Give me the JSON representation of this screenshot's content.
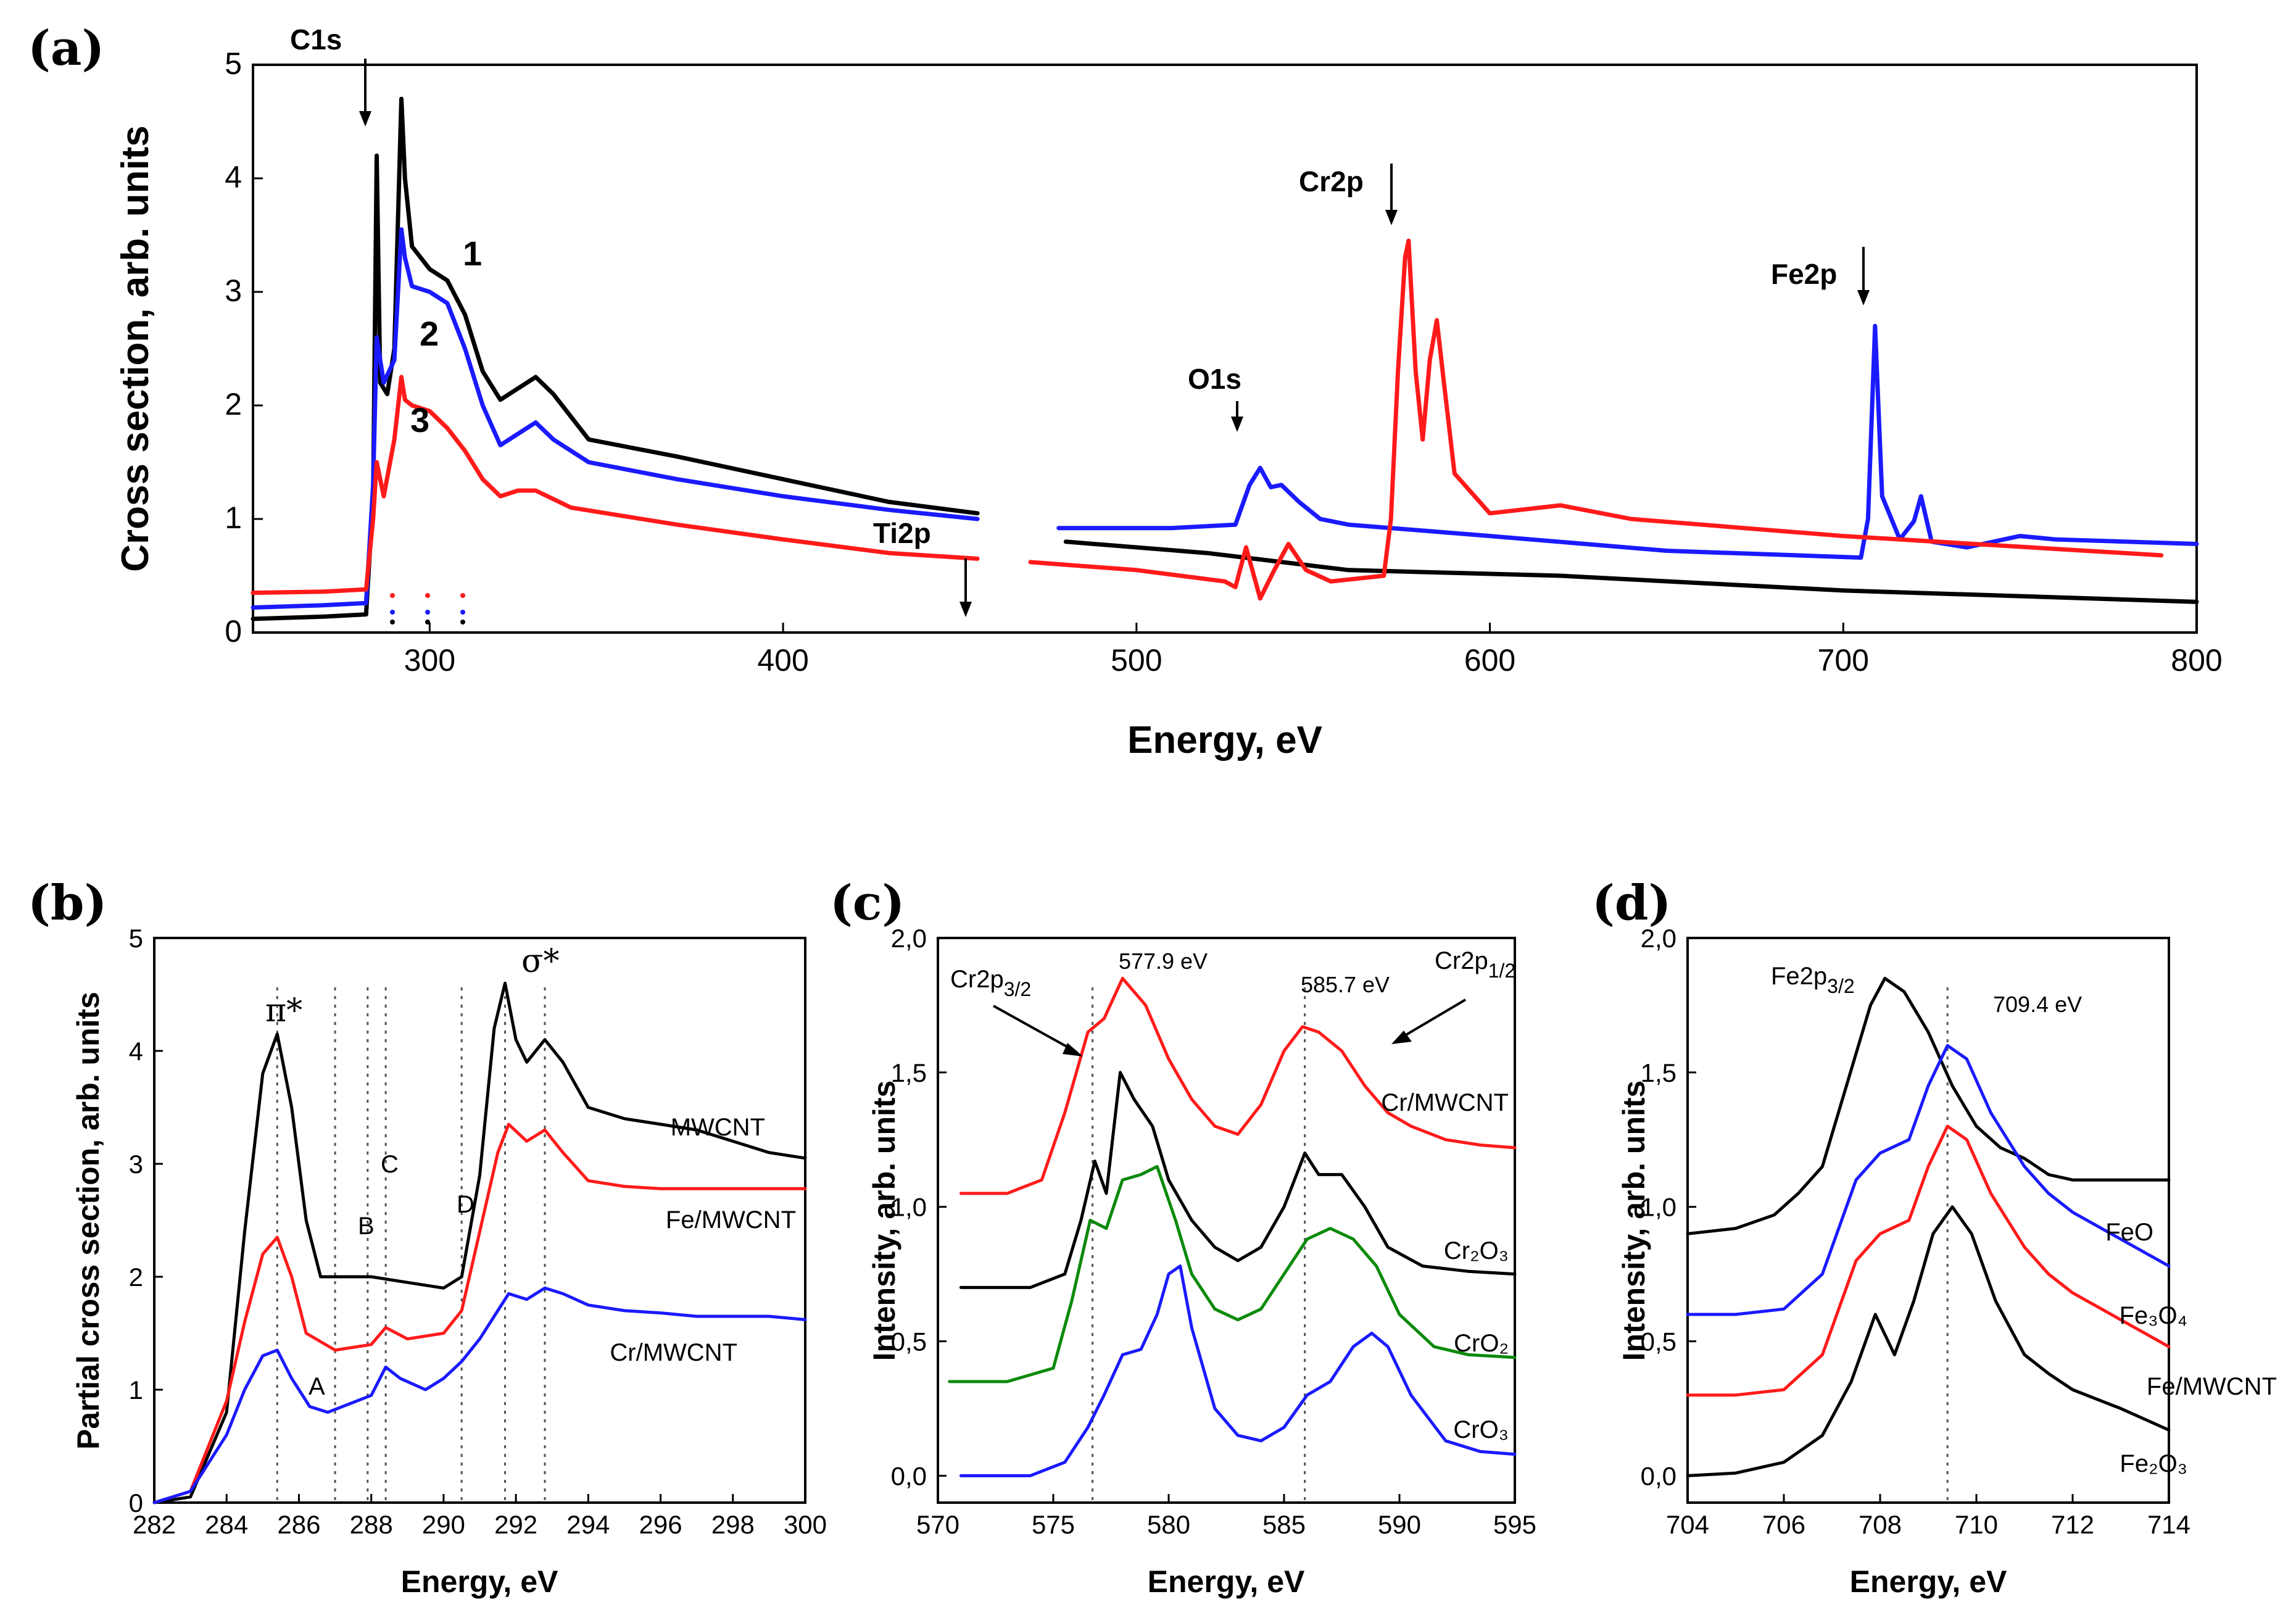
{
  "chart_data": [
    {
      "id": "a",
      "panel_label": "(a)",
      "type": "line",
      "xlabel": "Energy, eV",
      "ylabel": "Cross section, arb. units",
      "xlim": [
        250,
        800
      ],
      "ylim": [
        0,
        5
      ],
      "xticks": [
        "300",
        "400",
        "500",
        "600",
        "700",
        "800"
      ],
      "yticks": [
        "0",
        "1",
        "2",
        "3",
        "4",
        "5"
      ],
      "annotations": [
        "C1s",
        "Ti2p",
        "O1s",
        "Cr2p",
        "Fe2p"
      ],
      "curve_labels": [
        "1",
        "2",
        "3"
      ],
      "series": [
        {
          "name": "1",
          "color": "#000000",
          "segments": [
            {
              "x": [
                250,
                270,
                282,
                284,
                285,
                286,
                288,
                290,
                292,
                293,
                295,
                300,
                305,
                310,
                315,
                320,
                325,
                330,
                335,
                345,
                370,
                400,
                430,
                455
              ],
              "y": [
                0.12,
                0.14,
                0.16,
                1.2,
                4.2,
                2.2,
                2.1,
                2.5,
                4.7,
                4.0,
                3.4,
                3.2,
                3.1,
                2.8,
                2.3,
                2.05,
                2.15,
                2.25,
                2.1,
                1.7,
                1.55,
                1.35,
                1.15,
                1.05
              ]
            },
            {
              "x": [
                480,
                520,
                560,
                620,
                700,
                800
              ],
              "y": [
                0.8,
                0.7,
                0.55,
                0.5,
                0.37,
                0.27
              ]
            }
          ]
        },
        {
          "name": "2",
          "color": "#1a1aff",
          "segments": [
            {
              "x": [
                250,
                270,
                282,
                284,
                285,
                287,
                290,
                292,
                293,
                295,
                300,
                305,
                310,
                315,
                320,
                325,
                330,
                335,
                345,
                370,
                400,
                430,
                455
              ],
              "y": [
                0.22,
                0.24,
                0.26,
                1.3,
                2.6,
                2.2,
                2.4,
                3.55,
                3.3,
                3.05,
                3.0,
                2.9,
                2.5,
                2.0,
                1.65,
                1.75,
                1.85,
                1.7,
                1.5,
                1.35,
                1.2,
                1.08,
                1.0
              ]
            },
            {
              "x": [
                478,
                510,
                528,
                532,
                535,
                538,
                541,
                546,
                552,
                560,
                600,
                650,
                705,
                707,
                709,
                711,
                716,
                720,
                722,
                725,
                735,
                750,
                760,
                800
              ],
              "y": [
                0.92,
                0.92,
                0.95,
                1.3,
                1.45,
                1.28,
                1.3,
                1.15,
                1.0,
                0.95,
                0.85,
                0.72,
                0.66,
                1.0,
                2.7,
                1.2,
                0.82,
                0.98,
                1.2,
                0.8,
                0.75,
                0.85,
                0.82,
                0.78
              ]
            }
          ]
        },
        {
          "name": "3",
          "color": "#ff1a1a",
          "segments": [
            {
              "x": [
                250,
                270,
                282,
                284,
                285,
                287,
                290,
                292,
                293,
                295,
                300,
                305,
                310,
                315,
                320,
                325,
                330,
                340,
                370,
                400,
                430,
                455
              ],
              "y": [
                0.35,
                0.36,
                0.38,
                1.0,
                1.5,
                1.2,
                1.7,
                2.25,
                2.05,
                2.0,
                1.95,
                1.8,
                1.6,
                1.35,
                1.2,
                1.25,
                1.25,
                1.1,
                0.95,
                0.82,
                0.7,
                0.65
              ]
            },
            {
              "x": [
                470,
                500,
                525,
                528,
                531,
                535,
                539,
                543,
                548,
                555,
                570,
                572,
                574,
                576,
                577,
                579,
                581,
                583,
                585,
                587,
                590,
                600,
                620,
                640,
                700,
                790
              ],
              "y": [
                0.62,
                0.55,
                0.45,
                0.4,
                0.75,
                0.3,
                0.55,
                0.78,
                0.55,
                0.45,
                0.5,
                1.0,
                2.3,
                3.3,
                3.45,
                2.3,
                1.7,
                2.4,
                2.75,
                2.2,
                1.4,
                1.05,
                1.12,
                1.0,
                0.85,
                0.68
              ]
            }
          ]
        }
      ]
    },
    {
      "id": "b",
      "panel_label": "(b)",
      "type": "line",
      "xlabel": "Energy, eV",
      "ylabel": "Partial cross section, arb. units",
      "xlim": [
        282,
        300
      ],
      "ylim": [
        0,
        5
      ],
      "xticks": [
        "282",
        "284",
        "286",
        "288",
        "290",
        "292",
        "294",
        "296",
        "298",
        "300"
      ],
      "yticks": [
        "0",
        "1",
        "2",
        "3",
        "4",
        "5"
      ],
      "annotations": [
        "π*",
        "σ*",
        "A",
        "B",
        "C",
        "D"
      ],
      "guide_lines_x": [
        285.4,
        287.0,
        287.9,
        288.4,
        290.5,
        291.7,
        292.8
      ],
      "series": [
        {
          "name": "MWCNT",
          "color": "#000000",
          "x": [
            282,
            283,
            284,
            284.5,
            285,
            285.4,
            285.8,
            286.2,
            286.6,
            287,
            288,
            289,
            290,
            290.5,
            291,
            291.4,
            291.7,
            292.0,
            292.3,
            292.8,
            293.3,
            294,
            295,
            296,
            297,
            298,
            299,
            300
          ],
          "y": [
            0.0,
            0.05,
            0.8,
            2.4,
            3.8,
            4.15,
            3.5,
            2.5,
            2.0,
            2.0,
            2.0,
            1.95,
            1.9,
            2.0,
            2.9,
            4.2,
            4.6,
            4.1,
            3.9,
            4.1,
            3.9,
            3.5,
            3.4,
            3.35,
            3.3,
            3.2,
            3.1,
            3.05
          ]
        },
        {
          "name": "Fe/MWCNT",
          "color": "#ff1a1a",
          "x": [
            282,
            283,
            284,
            284.5,
            285,
            285.4,
            285.8,
            286.2,
            287,
            288,
            288.4,
            289,
            290,
            290.5,
            291,
            291.5,
            291.8,
            292.3,
            292.8,
            293.3,
            294,
            295,
            296,
            297,
            298,
            299,
            300
          ],
          "y": [
            0.0,
            0.1,
            0.9,
            1.6,
            2.2,
            2.35,
            2.0,
            1.5,
            1.35,
            1.4,
            1.55,
            1.45,
            1.5,
            1.7,
            2.4,
            3.1,
            3.35,
            3.2,
            3.3,
            3.1,
            2.85,
            2.8,
            2.78,
            2.78,
            2.78,
            2.78,
            2.78
          ]
        },
        {
          "name": "Cr/MWCNT",
          "color": "#1a1aff",
          "x": [
            282,
            283,
            284,
            284.5,
            285,
            285.4,
            285.8,
            286.3,
            286.8,
            287.2,
            288,
            288.4,
            288.8,
            289.5,
            290,
            290.5,
            291,
            291.5,
            291.8,
            292.3,
            292.8,
            293.3,
            294,
            295,
            296,
            297,
            298,
            299,
            300
          ],
          "y": [
            0.0,
            0.1,
            0.6,
            1.0,
            1.3,
            1.35,
            1.1,
            0.85,
            0.8,
            0.85,
            0.95,
            1.2,
            1.1,
            1.0,
            1.1,
            1.25,
            1.45,
            1.7,
            1.85,
            1.8,
            1.9,
            1.85,
            1.75,
            1.7,
            1.68,
            1.65,
            1.65,
            1.65,
            1.62
          ]
        }
      ],
      "curve_labels": [
        "MWCNT",
        "Fe/MWCNT",
        "Cr/MWCNT"
      ]
    },
    {
      "id": "c",
      "panel_label": "(c)",
      "type": "line",
      "xlabel": "Energy, eV",
      "ylabel": "Intensity, arb. units",
      "xlim": [
        570,
        595
      ],
      "ylim": [
        -0.1,
        2.0
      ],
      "xticks": [
        "570",
        "575",
        "580",
        "585",
        "590",
        "595"
      ],
      "yticks": [
        "0,0",
        "0,5",
        "1,0",
        "1,5",
        "2,0"
      ],
      "annotations": [
        "577.9 eV",
        "585.7 eV"
      ],
      "guide_lines_x": [
        576.7,
        585.9
      ],
      "series": [
        {
          "name": "Cr/MWCNT",
          "color": "#ff1a1a",
          "x": [
            571,
            573,
            574.5,
            575.5,
            576.5,
            577.2,
            578,
            579,
            580,
            581,
            582,
            583,
            584,
            585,
            585.8,
            586.5,
            587.5,
            588.5,
            589.5,
            590.5,
            592,
            593.5,
            595
          ],
          "y": [
            1.05,
            1.05,
            1.1,
            1.35,
            1.65,
            1.7,
            1.85,
            1.75,
            1.55,
            1.4,
            1.3,
            1.27,
            1.38,
            1.58,
            1.67,
            1.65,
            1.58,
            1.45,
            1.35,
            1.3,
            1.25,
            1.23,
            1.22
          ]
        },
        {
          "name": "Cr2O3",
          "color": "#000000",
          "x": [
            571,
            574,
            575.5,
            576.2,
            576.8,
            577.3,
            577.9,
            578.5,
            579.3,
            580,
            581,
            582,
            583,
            584,
            585,
            585.9,
            586.5,
            587.5,
            588.5,
            589.5,
            591,
            593,
            595
          ],
          "y": [
            0.7,
            0.7,
            0.75,
            0.95,
            1.17,
            1.05,
            1.5,
            1.4,
            1.3,
            1.1,
            0.95,
            0.85,
            0.8,
            0.85,
            1.0,
            1.2,
            1.12,
            1.12,
            1.0,
            0.85,
            0.78,
            0.76,
            0.75
          ]
        },
        {
          "name": "CrO2",
          "color": "#0b8a0b",
          "x": [
            570.5,
            573,
            575,
            575.8,
            576.6,
            577.3,
            578,
            578.8,
            579.5,
            580.3,
            581,
            582,
            583,
            584,
            585,
            586,
            587,
            588,
            589,
            590,
            591.5,
            593,
            595
          ],
          "y": [
            0.35,
            0.35,
            0.4,
            0.65,
            0.95,
            0.92,
            1.1,
            1.12,
            1.15,
            0.95,
            0.75,
            0.62,
            0.58,
            0.62,
            0.75,
            0.88,
            0.92,
            0.88,
            0.78,
            0.6,
            0.48,
            0.45,
            0.44
          ]
        },
        {
          "name": "CrO3",
          "color": "#1a1aff",
          "x": [
            571,
            574,
            575.5,
            576.5,
            577.2,
            578,
            578.8,
            579.5,
            580,
            580.5,
            581,
            582,
            583,
            584,
            585,
            586,
            587,
            588,
            588.8,
            589.5,
            590.5,
            592,
            593.5,
            595
          ],
          "y": [
            0.0,
            0.0,
            0.05,
            0.18,
            0.3,
            0.45,
            0.47,
            0.6,
            0.75,
            0.78,
            0.55,
            0.25,
            0.15,
            0.13,
            0.18,
            0.3,
            0.35,
            0.48,
            0.53,
            0.48,
            0.3,
            0.13,
            0.09,
            0.08
          ]
        }
      ],
      "curve_labels": [
        "Cr/MWCNT",
        "Cr₂O₃",
        "CrO₂",
        "CrO₃"
      ]
    },
    {
      "id": "d",
      "panel_label": "(d)",
      "type": "line",
      "xlabel": "Energy, eV",
      "ylabel": "Intensity, arb. units",
      "xlim": [
        704,
        714
      ],
      "ylim": [
        -0.1,
        2.0
      ],
      "xticks": [
        "704",
        "706",
        "708",
        "710",
        "712",
        "714"
      ],
      "yticks": [
        "0,0",
        "0,5",
        "1,0",
        "1,5",
        "2,0"
      ],
      "annotations": [
        "709.4 eV"
      ],
      "guide_lines_x": [
        709.4
      ],
      "series": [
        {
          "name": "FeO",
          "color": "#000000",
          "x": [
            704,
            705,
            705.8,
            706.3,
            706.8,
            707.3,
            707.8,
            708.1,
            708.5,
            709,
            709.5,
            710,
            710.5,
            711,
            711.5,
            712,
            713,
            714
          ],
          "y": [
            0.9,
            0.92,
            0.97,
            1.05,
            1.15,
            1.45,
            1.75,
            1.85,
            1.8,
            1.65,
            1.45,
            1.3,
            1.22,
            1.18,
            1.12,
            1.1,
            1.1,
            1.1
          ]
        },
        {
          "name": "Fe3O4",
          "color": "#1a1aff",
          "x": [
            704,
            705,
            706,
            706.8,
            707.5,
            708,
            708.6,
            709,
            709.4,
            709.8,
            710.3,
            711,
            711.5,
            712,
            713,
            714
          ],
          "y": [
            0.6,
            0.6,
            0.62,
            0.75,
            1.1,
            1.2,
            1.25,
            1.45,
            1.6,
            1.55,
            1.35,
            1.15,
            1.05,
            0.98,
            0.88,
            0.78
          ]
        },
        {
          "name": "Fe/MWCNT",
          "color": "#ff1a1a",
          "x": [
            704,
            705,
            706,
            706.8,
            707.5,
            708,
            708.6,
            709,
            709.4,
            709.8,
            710.3,
            711,
            711.5,
            712,
            713,
            714
          ],
          "y": [
            0.3,
            0.3,
            0.32,
            0.45,
            0.8,
            0.9,
            0.95,
            1.15,
            1.3,
            1.25,
            1.05,
            0.85,
            0.75,
            0.68,
            0.58,
            0.48
          ]
        },
        {
          "name": "Fe2O3",
          "color": "#000000",
          "x": [
            704,
            705,
            706,
            706.8,
            707.4,
            707.9,
            708.3,
            708.7,
            709.1,
            709.5,
            709.9,
            710.4,
            711,
            711.5,
            712,
            713,
            714
          ],
          "y": [
            0.0,
            0.01,
            0.05,
            0.15,
            0.35,
            0.6,
            0.45,
            0.65,
            0.9,
            1.0,
            0.9,
            0.65,
            0.45,
            0.38,
            0.32,
            0.25,
            0.17
          ]
        }
      ],
      "curve_labels": [
        "FeO",
        "Fe₃O₄",
        "Fe/MWCNT",
        "Fe₂O₃"
      ]
    }
  ]
}
